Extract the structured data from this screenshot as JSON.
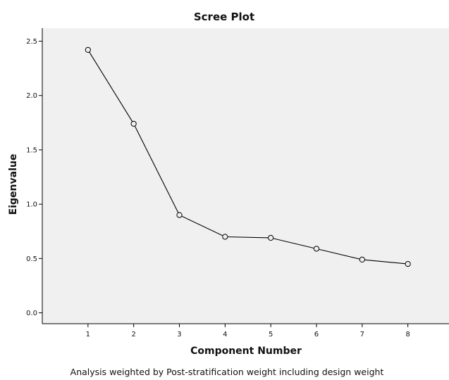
{
  "chart_data": {
    "type": "line",
    "title": "Scree Plot",
    "xlabel": "Component Number",
    "ylabel": "Eigenvalue",
    "x": [
      1,
      2,
      3,
      4,
      5,
      6,
      7,
      8
    ],
    "x_tick_labels": [
      "1",
      "2",
      "3",
      "4",
      "5",
      "6",
      "7",
      "8"
    ],
    "y_tick_values": [
      0.0,
      0.5,
      1.0,
      1.5,
      2.0,
      2.5
    ],
    "y_tick_labels": [
      "0.0",
      "0.5",
      "1.0",
      "1.5",
      "2.0",
      "2.5"
    ],
    "series": [
      {
        "values": [
          2.42,
          1.74,
          0.9,
          0.7,
          0.69,
          0.59,
          0.49,
          0.45
        ]
      }
    ],
    "xlim": [
      0,
      8.9
    ],
    "ylim": [
      -0.1,
      2.62
    ],
    "grid": false,
    "marker": "open-circle",
    "footnote": "Analysis weighted by Post-stratification weight including design weight",
    "colors": {
      "plot_background": "#f0f0f0",
      "line": "#000000",
      "axis": "#000000"
    }
  }
}
